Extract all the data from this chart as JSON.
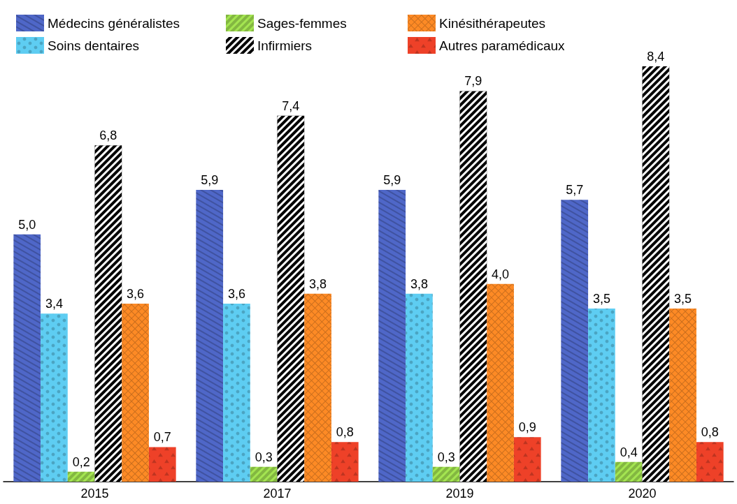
{
  "chart_data": {
    "type": "bar",
    "categories": [
      "2015",
      "2017",
      "2019",
      "2020"
    ],
    "series": [
      {
        "name": "Médecins généralistes",
        "color": "#4f67c8",
        "values": [
          5.0,
          5.9,
          5.9,
          5.7
        ],
        "value_labels": [
          "5,0",
          "5,9",
          "5,9",
          "5,7"
        ]
      },
      {
        "name": "Soins dentaires",
        "color": "#5ecdf2",
        "values": [
          3.4,
          3.6,
          3.8,
          3.5
        ],
        "value_labels": [
          "3,4",
          "3,6",
          "3,8",
          "3,5"
        ]
      },
      {
        "name": "Sages-femmes",
        "color": "#a4e551",
        "values": [
          0.2,
          0.3,
          0.3,
          0.4
        ],
        "value_labels": [
          "0,2",
          "0,3",
          "0,3",
          "0,4"
        ]
      },
      {
        "name": "Infirmiers",
        "color": "#000000",
        "values": [
          6.8,
          7.4,
          7.9,
          8.4
        ],
        "value_labels": [
          "6,8",
          "7,4",
          "7,9",
          "8,4"
        ]
      },
      {
        "name": "Kinésithérapeutes",
        "color": "#fd8a25",
        "values": [
          3.6,
          3.8,
          4.0,
          3.5
        ],
        "value_labels": [
          "3,6",
          "3,8",
          "4,0",
          "3,5"
        ]
      },
      {
        "name": "Autres paramédicaux",
        "color": "#ee4128",
        "values": [
          0.7,
          0.8,
          0.9,
          0.8
        ],
        "value_labels": [
          "0,7",
          "0,8",
          "0,9",
          "0,8"
        ]
      }
    ],
    "legend": "top"
  }
}
